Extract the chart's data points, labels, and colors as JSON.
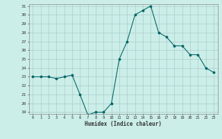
{
  "x": [
    0,
    1,
    2,
    3,
    4,
    5,
    6,
    7,
    8,
    9,
    10,
    11,
    12,
    13,
    14,
    15,
    16,
    17,
    18,
    19,
    20,
    21,
    22,
    23
  ],
  "y": [
    23,
    23,
    23,
    22.8,
    23,
    23.2,
    21,
    18.7,
    19,
    19,
    20,
    25,
    27,
    30,
    30.5,
    31,
    28,
    27.5,
    26.5,
    26.5,
    25.5,
    25.5,
    24,
    23.5
  ],
  "xlabel": "Humidex (Indice chaleur)",
  "ylabel": "",
  "line_color": "#006666",
  "marker_color": "#006666",
  "bg_color": "#cceee8",
  "grid_color": "#aacccc",
  "ylim_min": 19,
  "ylim_max": 31,
  "xlim_min": 0,
  "xlim_max": 23,
  "yticks": [
    19,
    20,
    21,
    22,
    23,
    24,
    25,
    26,
    27,
    28,
    29,
    30,
    31
  ],
  "xticks": [
    0,
    1,
    2,
    3,
    4,
    5,
    6,
    7,
    8,
    9,
    10,
    11,
    12,
    13,
    14,
    15,
    16,
    17,
    18,
    19,
    20,
    21,
    22,
    23
  ]
}
